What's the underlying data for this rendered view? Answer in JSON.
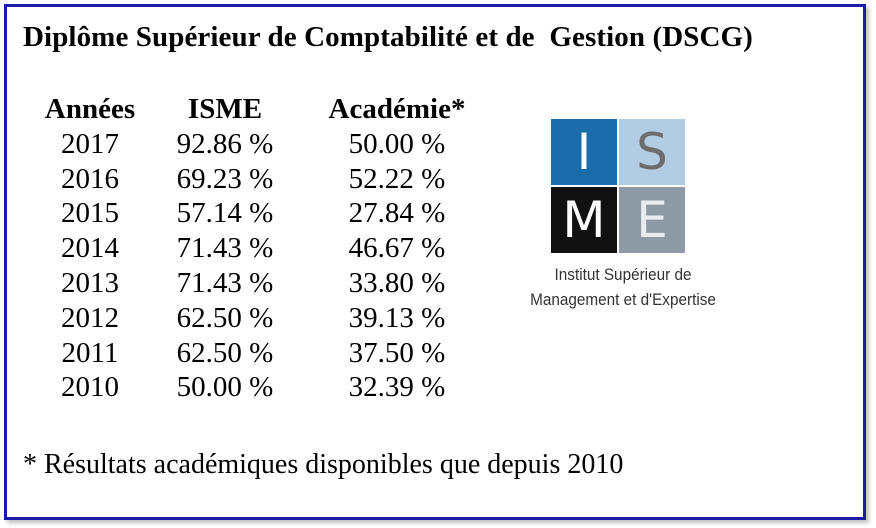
{
  "title": "Diplôme Supérieur de Comptabilité et de  Gestion (DSCG)",
  "table": {
    "headers": [
      "Années",
      "ISME",
      "Académie*"
    ],
    "rows": [
      [
        "2017",
        "92.86 %",
        "50.00 %"
      ],
      [
        "2016",
        "69.23 %",
        "52.22 %"
      ],
      [
        "2015",
        "57.14 %",
        "27.84 %"
      ],
      [
        "2014",
        "71.43 %",
        "46.67 %"
      ],
      [
        "2013",
        "71.43 %",
        "33.80 %"
      ],
      [
        "2012",
        "62.50 %",
        "39.13 %"
      ],
      [
        "2011",
        "62.50 %",
        "37.50 %"
      ],
      [
        "2010",
        "50.00 %",
        "32.39 %"
      ]
    ]
  },
  "logo": {
    "letters": [
      {
        "char": "I",
        "bg": "#1a6cab",
        "fg": "#ffffff"
      },
      {
        "char": "S",
        "bg": "#b2cde3",
        "fg": "#6d6d6d"
      },
      {
        "char": "M",
        "bg": "#111111",
        "fg": "#ffffff"
      },
      {
        "char": "E",
        "bg": "#8d9aa5",
        "fg": "#e9ecef"
      }
    ],
    "line1": "Institut Supérieur de",
    "line2": "Management et d'Expertise"
  },
  "footnote": "* Résultats académiques disponibles que depuis 2010",
  "colors": {
    "border": "#1c1aa8"
  }
}
